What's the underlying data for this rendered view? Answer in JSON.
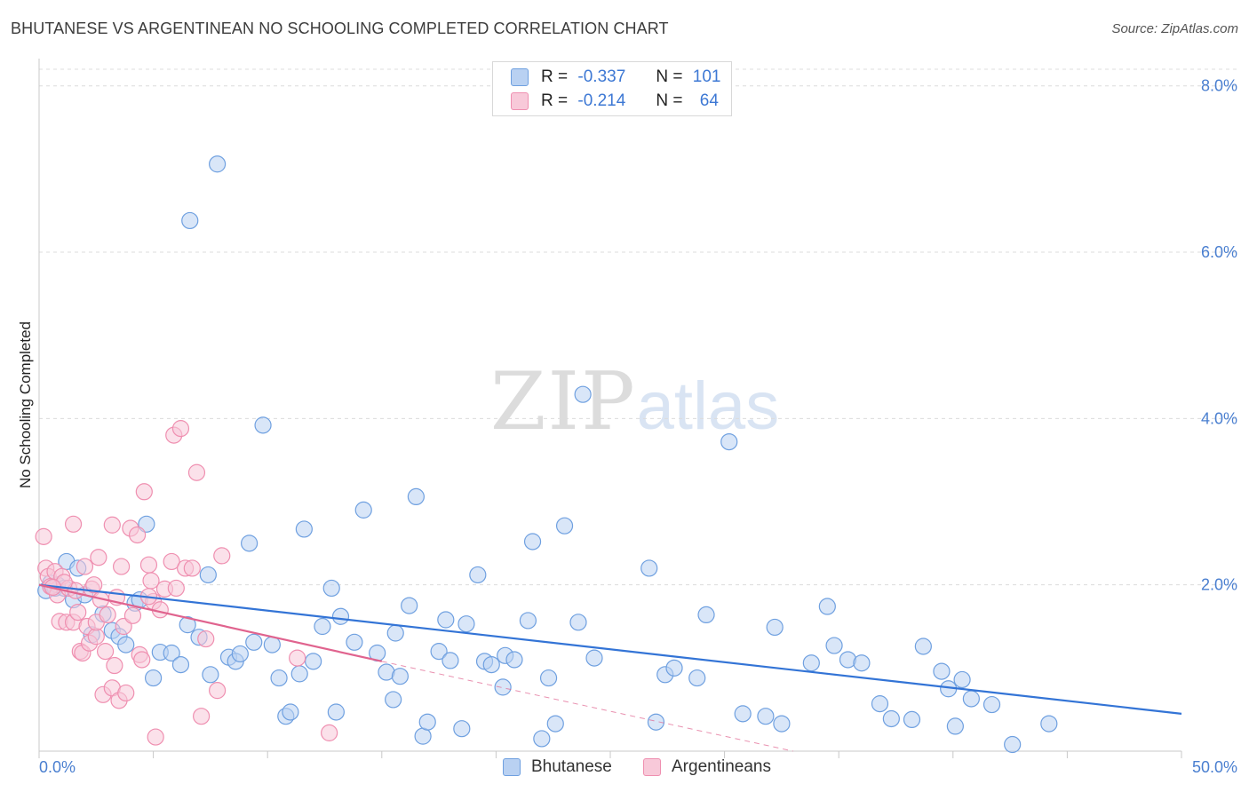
{
  "title": "BHUTANESE VS ARGENTINEAN NO SCHOOLING COMPLETED CORRELATION CHART",
  "source": "Source: ZipAtlas.com",
  "watermark": {
    "part1": "ZIP",
    "part2": "atlas"
  },
  "legend": {
    "rows": [
      {
        "r_label": "R =",
        "r_value": "-0.337",
        "n_label": "N =",
        "n_value": "101",
        "color": "#6fa0e0",
        "fill": "#b9d1f2"
      },
      {
        "r_label": "R =",
        "r_value": "-0.214",
        "n_label": "N =",
        "n_value": "64",
        "color": "#ef8fb0",
        "fill": "#f8c9d9"
      }
    ]
  },
  "bottom_legend": [
    {
      "label": "Bhutanese",
      "color": "#6fa0e0",
      "fill": "#b9d1f2"
    },
    {
      "label": "Argentineans",
      "color": "#ef8fb0",
      "fill": "#f8c9d9"
    }
  ],
  "chart_data": {
    "type": "scatter",
    "title": "BHUTANESE VS ARGENTINEAN NO SCHOOLING COMPLETED CORRELATION CHART",
    "xlabel": "",
    "ylabel": "No Schooling Completed",
    "xlim": [
      0,
      50
    ],
    "ylim": [
      0,
      8.2
    ],
    "x_tick_labels": [
      "0.0%",
      "50.0%"
    ],
    "y_ticks": [
      2,
      4,
      6,
      8
    ],
    "y_tick_labels": [
      "2.0%",
      "4.0%",
      "6.0%",
      "8.0%"
    ],
    "grid": true,
    "legend_position": "top-center",
    "series": [
      {
        "name": "Bhutanese",
        "color": "#6fa0e0",
        "fill": "#b9d1f2",
        "trendline": {
          "x": [
            0,
            50
          ],
          "y": [
            2.0,
            0.45
          ],
          "color": "#3374d6"
        },
        "points": [
          [
            0.3,
            1.93
          ],
          [
            0.5,
            2.02
          ],
          [
            0.7,
            1.96
          ],
          [
            0.8,
            2.0
          ],
          [
            1.1,
            1.96
          ],
          [
            1.2,
            2.28
          ],
          [
            1.5,
            1.82
          ],
          [
            1.7,
            2.2
          ],
          [
            2.0,
            1.88
          ],
          [
            2.3,
            1.4
          ],
          [
            2.8,
            1.65
          ],
          [
            3.2,
            1.45
          ],
          [
            3.5,
            1.38
          ],
          [
            3.8,
            1.28
          ],
          [
            4.2,
            1.78
          ],
          [
            4.4,
            1.82
          ],
          [
            4.7,
            2.73
          ],
          [
            5.0,
            0.88
          ],
          [
            5.3,
            1.19
          ],
          [
            5.8,
            1.18
          ],
          [
            6.2,
            1.04
          ],
          [
            6.5,
            1.52
          ],
          [
            6.6,
            6.38
          ],
          [
            7.0,
            1.37
          ],
          [
            7.4,
            2.12
          ],
          [
            7.5,
            0.92
          ],
          [
            7.8,
            7.06
          ],
          [
            8.3,
            1.13
          ],
          [
            8.6,
            1.08
          ],
          [
            8.8,
            1.17
          ],
          [
            9.2,
            2.5
          ],
          [
            9.4,
            1.31
          ],
          [
            9.8,
            3.92
          ],
          [
            10.2,
            1.28
          ],
          [
            10.5,
            0.88
          ],
          [
            10.8,
            0.42
          ],
          [
            11.0,
            0.47
          ],
          [
            11.4,
            0.93
          ],
          [
            11.6,
            2.67
          ],
          [
            12.0,
            1.08
          ],
          [
            12.4,
            1.5
          ],
          [
            12.8,
            1.96
          ],
          [
            13.0,
            0.47
          ],
          [
            13.2,
            1.62
          ],
          [
            13.8,
            1.31
          ],
          [
            14.2,
            2.9
          ],
          [
            14.8,
            1.18
          ],
          [
            15.2,
            0.95
          ],
          [
            15.5,
            0.62
          ],
          [
            15.6,
            1.42
          ],
          [
            15.8,
            0.9
          ],
          [
            16.2,
            1.75
          ],
          [
            16.5,
            3.06
          ],
          [
            16.8,
            0.18
          ],
          [
            17.0,
            0.35
          ],
          [
            17.5,
            1.2
          ],
          [
            17.8,
            1.58
          ],
          [
            18.0,
            1.09
          ],
          [
            18.5,
            0.27
          ],
          [
            18.7,
            1.53
          ],
          [
            19.2,
            2.12
          ],
          [
            19.5,
            1.08
          ],
          [
            19.8,
            1.04
          ],
          [
            20.3,
            0.77
          ],
          [
            20.4,
            1.15
          ],
          [
            20.8,
            1.1
          ],
          [
            21.4,
            1.57
          ],
          [
            21.6,
            2.52
          ],
          [
            22.0,
            0.15
          ],
          [
            22.3,
            0.88
          ],
          [
            22.6,
            0.33
          ],
          [
            23.0,
            2.71
          ],
          [
            23.6,
            1.55
          ],
          [
            23.8,
            4.29
          ],
          [
            24.3,
            1.12
          ],
          [
            26.7,
            2.2
          ],
          [
            27.0,
            0.35
          ],
          [
            27.4,
            0.92
          ],
          [
            27.8,
            1.0
          ],
          [
            28.8,
            0.88
          ],
          [
            29.2,
            1.64
          ],
          [
            30.2,
            3.72
          ],
          [
            30.8,
            0.45
          ],
          [
            31.8,
            0.42
          ],
          [
            32.2,
            1.49
          ],
          [
            32.5,
            0.33
          ],
          [
            33.8,
            1.06
          ],
          [
            34.5,
            1.74
          ],
          [
            34.8,
            1.27
          ],
          [
            35.4,
            1.1
          ],
          [
            36.0,
            1.06
          ],
          [
            36.8,
            0.57
          ],
          [
            37.3,
            0.39
          ],
          [
            38.2,
            0.38
          ],
          [
            38.7,
            1.26
          ],
          [
            39.5,
            0.96
          ],
          [
            39.8,
            0.75
          ],
          [
            40.1,
            0.3
          ],
          [
            40.4,
            0.86
          ],
          [
            40.8,
            0.63
          ],
          [
            41.7,
            0.56
          ],
          [
            42.6,
            0.08
          ],
          [
            44.2,
            0.33
          ]
        ]
      },
      {
        "name": "Argentineans",
        "color": "#ef8fb0",
        "fill": "#f8c9d9",
        "trendline": {
          "x": [
            0,
            15
          ],
          "y": [
            2.0,
            1.08
          ],
          "dashed_extension": {
            "x": [
              15,
              33
            ],
            "y": [
              1.08,
              0.0
            ]
          },
          "color": "#e0638e"
        },
        "points": [
          [
            0.2,
            2.58
          ],
          [
            0.3,
            2.2
          ],
          [
            0.4,
            2.1
          ],
          [
            0.5,
            1.98
          ],
          [
            0.7,
            2.16
          ],
          [
            0.8,
            1.88
          ],
          [
            0.9,
            1.56
          ],
          [
            1.0,
            2.1
          ],
          [
            1.2,
            1.55
          ],
          [
            1.3,
            1.96
          ],
          [
            1.5,
            2.73
          ],
          [
            1.5,
            1.55
          ],
          [
            1.6,
            1.93
          ],
          [
            1.7,
            1.67
          ],
          [
            1.8,
            1.2
          ],
          [
            1.9,
            1.18
          ],
          [
            2.0,
            2.22
          ],
          [
            2.1,
            1.5
          ],
          [
            2.2,
            1.3
          ],
          [
            2.3,
            1.95
          ],
          [
            2.5,
            1.38
          ],
          [
            2.5,
            1.55
          ],
          [
            2.6,
            2.33
          ],
          [
            2.7,
            1.82
          ],
          [
            2.8,
            0.68
          ],
          [
            2.9,
            1.2
          ],
          [
            3.0,
            1.64
          ],
          [
            3.2,
            2.72
          ],
          [
            3.2,
            0.76
          ],
          [
            3.3,
            1.03
          ],
          [
            3.4,
            1.85
          ],
          [
            3.5,
            0.61
          ],
          [
            3.6,
            2.22
          ],
          [
            3.7,
            1.5
          ],
          [
            3.8,
            0.7
          ],
          [
            4.0,
            2.68
          ],
          [
            4.1,
            1.63
          ],
          [
            4.3,
            2.6
          ],
          [
            4.4,
            1.16
          ],
          [
            4.5,
            1.1
          ],
          [
            4.6,
            3.12
          ],
          [
            4.8,
            2.24
          ],
          [
            4.9,
            2.05
          ],
          [
            5.0,
            1.8
          ],
          [
            5.1,
            0.17
          ],
          [
            5.3,
            1.7
          ],
          [
            5.5,
            1.95
          ],
          [
            5.8,
            2.28
          ],
          [
            5.9,
            3.8
          ],
          [
            6.0,
            1.96
          ],
          [
            6.2,
            3.88
          ],
          [
            6.4,
            2.2
          ],
          [
            6.7,
            2.2
          ],
          [
            6.9,
            3.35
          ],
          [
            7.1,
            0.42
          ],
          [
            7.3,
            1.35
          ],
          [
            7.8,
            0.73
          ],
          [
            8.0,
            2.35
          ],
          [
            11.3,
            1.12
          ],
          [
            12.7,
            0.22
          ],
          [
            2.4,
            2.0
          ],
          [
            1.1,
            2.03
          ],
          [
            0.6,
            1.97
          ],
          [
            4.8,
            1.86
          ]
        ]
      }
    ]
  }
}
